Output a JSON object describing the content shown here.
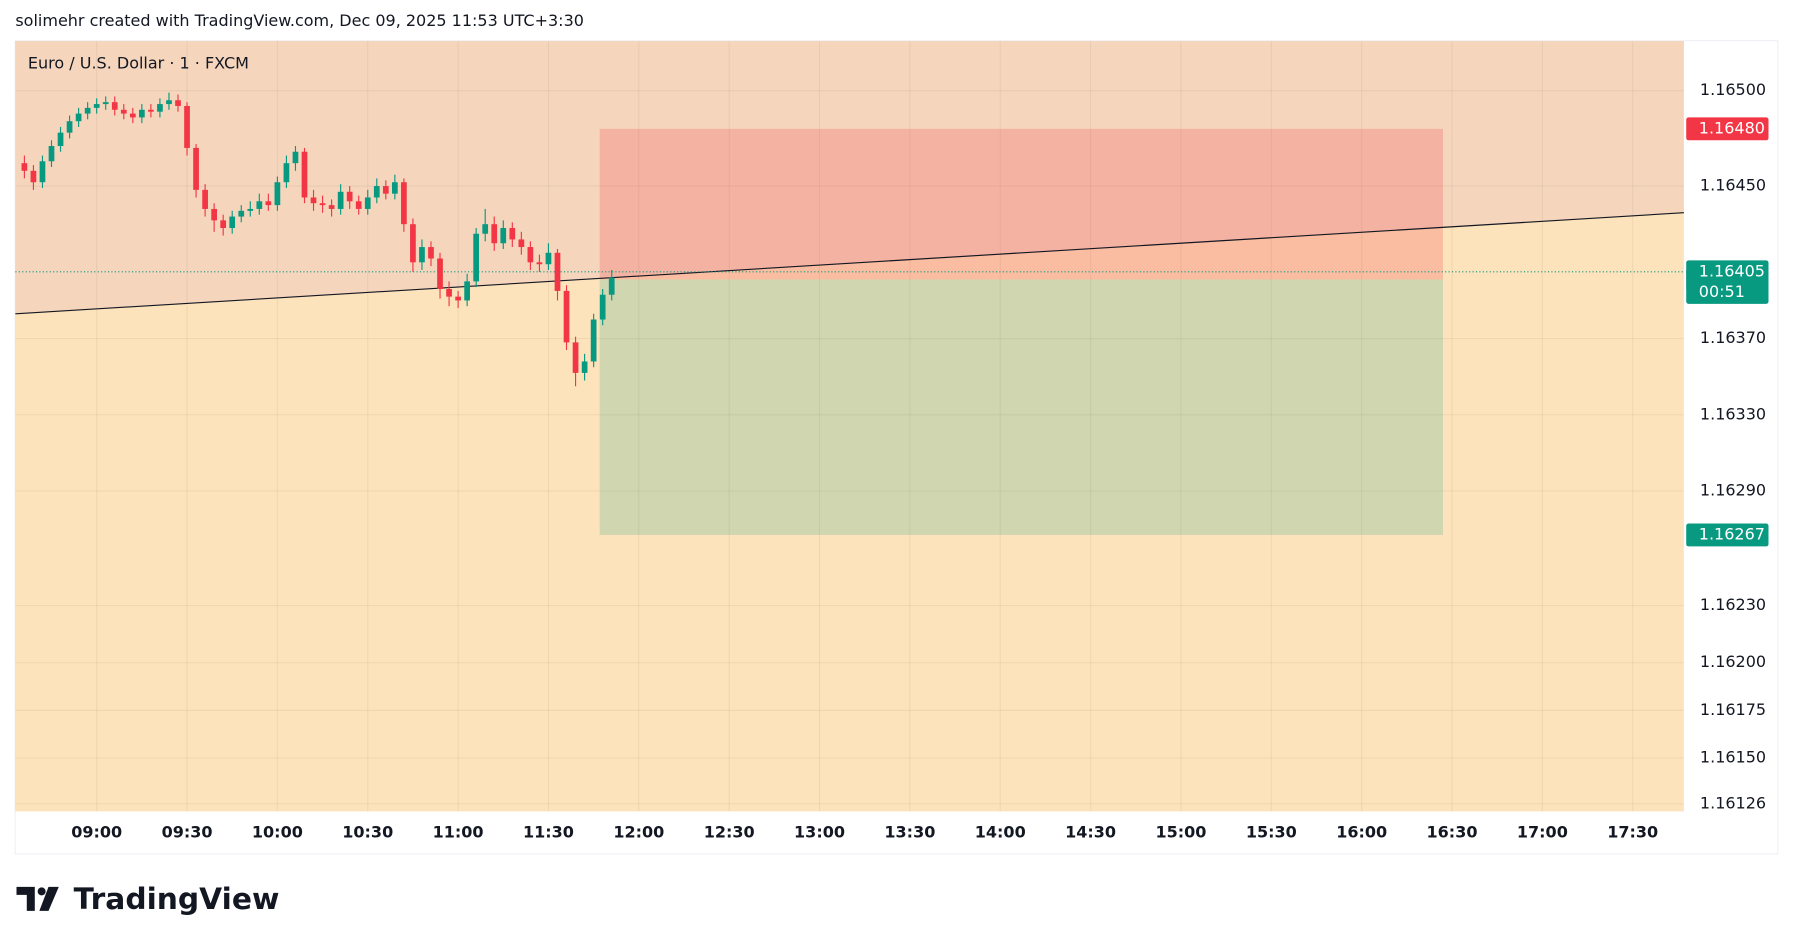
{
  "header": "solimehr created with TradingView.com, Dec 09, 2025 11:53 UTC+3:30",
  "footer": "TradingView",
  "chart_data": {
    "type": "candlestick",
    "title": "Euro / U.S. Dollar · 1 · FXCM",
    "x": [
      "08:36",
      "08:39",
      "08:42",
      "08:45",
      "08:48",
      "08:51",
      "08:54",
      "08:57",
      "09:00",
      "09:03",
      "09:06",
      "09:09",
      "09:12",
      "09:15",
      "09:18",
      "09:21",
      "09:24",
      "09:27",
      "09:30",
      "09:33",
      "09:36",
      "09:39",
      "09:42",
      "09:45",
      "09:48",
      "09:51",
      "09:54",
      "09:57",
      "10:00",
      "10:03",
      "10:06",
      "10:09",
      "10:12",
      "10:15",
      "10:18",
      "10:21",
      "10:24",
      "10:27",
      "10:30",
      "10:33",
      "10:36",
      "10:39",
      "10:42",
      "10:45",
      "10:48",
      "10:51",
      "10:54",
      "10:57",
      "11:00",
      "11:03",
      "11:06",
      "11:09",
      "11:12",
      "11:15",
      "11:18",
      "11:21",
      "11:24",
      "11:27",
      "11:30",
      "11:33",
      "11:36",
      "11:39",
      "11:42",
      "11:45",
      "11:48",
      "11:51"
    ],
    "open": [
      1.16462,
      1.16458,
      1.16452,
      1.16463,
      1.16471,
      1.16478,
      1.16484,
      1.16488,
      1.16491,
      1.16493,
      1.16494,
      1.1649,
      1.16488,
      1.16486,
      1.1649,
      1.16489,
      1.16493,
      1.16495,
      1.16492,
      1.1647,
      1.16448,
      1.16438,
      1.16432,
      1.16428,
      1.16434,
      1.16437,
      1.16438,
      1.16442,
      1.1644,
      1.16452,
      1.16462,
      1.16468,
      1.16444,
      1.16441,
      1.1644,
      1.16438,
      1.16447,
      1.16442,
      1.16438,
      1.16444,
      1.1645,
      1.16446,
      1.16452,
      1.1643,
      1.1641,
      1.16418,
      1.16412,
      1.16396,
      1.16392,
      1.1639,
      1.164,
      1.16425,
      1.1643,
      1.1642,
      1.16428,
      1.16422,
      1.16418,
      1.1641,
      1.16409,
      1.16415,
      1.16395,
      1.16368,
      1.16352,
      1.16358,
      1.1638,
      1.16393
    ],
    "high": [
      1.16466,
      1.16461,
      1.16466,
      1.16474,
      1.16481,
      1.16487,
      1.16491,
      1.16494,
      1.16496,
      1.16497,
      1.16497,
      1.16493,
      1.16491,
      1.16493,
      1.16493,
      1.16496,
      1.16499,
      1.16498,
      1.16494,
      1.16472,
      1.16451,
      1.16441,
      1.16435,
      1.16437,
      1.1644,
      1.16442,
      1.16446,
      1.16446,
      1.16455,
      1.16466,
      1.16471,
      1.1647,
      1.16448,
      1.16445,
      1.16443,
      1.16451,
      1.1645,
      1.16445,
      1.16448,
      1.16454,
      1.16453,
      1.16456,
      1.16454,
      1.16433,
      1.16422,
      1.16421,
      1.16415,
      1.164,
      1.16395,
      1.16404,
      1.16428,
      1.16438,
      1.16434,
      1.16432,
      1.16431,
      1.16426,
      1.16421,
      1.16414,
      1.1642,
      1.16417,
      1.16398,
      1.16371,
      1.16362,
      1.16383,
      1.16396,
      1.16406
    ],
    "low": [
      1.16454,
      1.16448,
      1.16449,
      1.1646,
      1.16468,
      1.16475,
      1.16481,
      1.16485,
      1.16488,
      1.1649,
      1.16487,
      1.16485,
      1.16483,
      1.16483,
      1.16486,
      1.16486,
      1.1649,
      1.16489,
      1.16466,
      1.16444,
      1.16434,
      1.16426,
      1.16424,
      1.16425,
      1.16431,
      1.16434,
      1.16435,
      1.16437,
      1.16437,
      1.16449,
      1.16458,
      1.16441,
      1.16437,
      1.16436,
      1.16434,
      1.16435,
      1.16438,
      1.16435,
      1.16435,
      1.16441,
      1.16443,
      1.16443,
      1.16426,
      1.16405,
      1.16406,
      1.16408,
      1.16391,
      1.16387,
      1.16386,
      1.16387,
      1.16397,
      1.16421,
      1.16416,
      1.16417,
      1.16418,
      1.16414,
      1.16406,
      1.16405,
      1.16406,
      1.1639,
      1.16364,
      1.16345,
      1.16348,
      1.16355,
      1.16377,
      1.1639
    ],
    "close": [
      1.16458,
      1.16452,
      1.16463,
      1.16471,
      1.16478,
      1.16484,
      1.16488,
      1.16491,
      1.16493,
      1.16494,
      1.1649,
      1.16488,
      1.16486,
      1.1649,
      1.16489,
      1.16493,
      1.16495,
      1.16492,
      1.1647,
      1.16448,
      1.16438,
      1.16432,
      1.16428,
      1.16434,
      1.16437,
      1.16438,
      1.16442,
      1.1644,
      1.16452,
      1.16462,
      1.16468,
      1.16444,
      1.16441,
      1.1644,
      1.16438,
      1.16447,
      1.16442,
      1.16438,
      1.16444,
      1.1645,
      1.16446,
      1.16452,
      1.1643,
      1.1641,
      1.16418,
      1.16412,
      1.16396,
      1.16392,
      1.1639,
      1.164,
      1.16425,
      1.1643,
      1.1642,
      1.16428,
      1.16422,
      1.16418,
      1.1641,
      1.16409,
      1.16415,
      1.16395,
      1.16368,
      1.16352,
      1.16358,
      1.1638,
      1.16393,
      1.16402
    ],
    "up_color": "#089981",
    "down_color": "#f23645",
    "xlim": [
      "08:33",
      "17:47"
    ],
    "xticks": [
      "09:00",
      "09:30",
      "10:00",
      "10:30",
      "11:00",
      "11:30",
      "12:00",
      "12:30",
      "13:00",
      "13:30",
      "14:00",
      "14:30",
      "15:00",
      "15:30",
      "16:00",
      "16:30",
      "17:00",
      "17:30"
    ],
    "ylim": [
      1.16122,
      1.16526
    ],
    "yticks": [
      {
        "value": 1.165,
        "label": "1.16500"
      },
      {
        "value": 1.1645,
        "label": "1.16450"
      },
      {
        "value": 1.1637,
        "label": "1.16370"
      },
      {
        "value": 1.1633,
        "label": "1.16330"
      },
      {
        "value": 1.1629,
        "label": "1.16290"
      },
      {
        "value": 1.1623,
        "label": "1.16230"
      },
      {
        "value": 1.162,
        "label": "1.16200"
      },
      {
        "value": 1.16175,
        "label": "1.16175"
      },
      {
        "value": 1.1615,
        "label": "1.16150"
      },
      1.16126
    ],
    "grid": true,
    "trendline": {
      "x": [
        "08:33",
        "17:47"
      ],
      "y": [
        1.16383,
        1.16436
      ],
      "above_color": "#f5d6bd",
      "below_color": "#fde3bb"
    },
    "position": {
      "start": "11:47",
      "end": "16:27",
      "entry": 1.16401,
      "stop": {
        "value": 1.1648,
        "label": "1.16480"
      },
      "target": {
        "value": 1.16267,
        "label": "1.16267"
      },
      "loss_color": "#f23645",
      "profit_color": "#089981",
      "entry_color": "#787b86"
    },
    "last_price": {
      "value": 1.16405,
      "countdown": "00:51"
    }
  }
}
